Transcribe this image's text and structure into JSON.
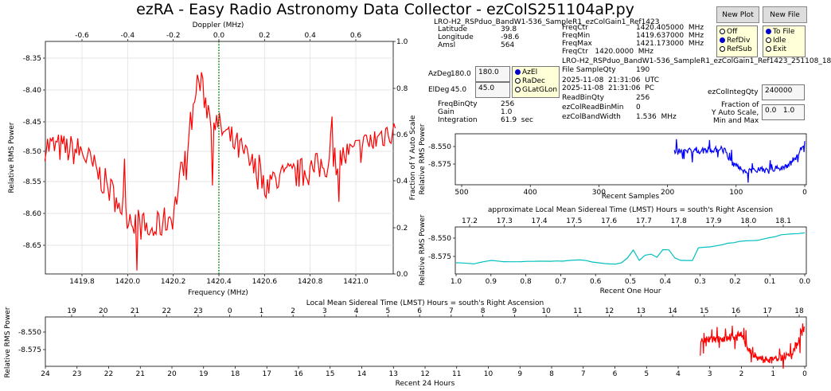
{
  "title": "ezRA - Easy Radio Astronomy Data Collector - ezColS251104aP.py",
  "buttons": {
    "new_plot": "New Plot",
    "new_file": "New File"
  },
  "radio_ref": {
    "options": [
      "Off",
      "RefDiv",
      "RefSub"
    ],
    "selected": 1
  },
  "radio_file": {
    "options": [
      "To File",
      "Idle",
      "Exit"
    ],
    "selected": 0
  },
  "radio_coord": {
    "options": [
      "AzEl",
      "RaDec",
      "GLatGLon"
    ],
    "selected": 0
  },
  "inputs": {
    "az": "180.0",
    "el": "45.0",
    "integ_qty": "240000",
    "fraction": "0.0   1.0"
  },
  "info": {
    "filename_overlap": "LRO-H2_RSPduo_BandW1-536_SampleR1_ezColGain1_Ref1423",
    "freq_ref_overlap": "FreqCtr   1420.0000  MHz",
    "latitude_label": "Latitude",
    "latitude": "39.8",
    "longitude_label": "Longitude",
    "longitude": "-98.6",
    "amsl_label": "Amsl",
    "amsl": "564",
    "freqctr_label": "FreqCtr",
    "freqctr": "1420.405000  MHz",
    "freqmin_label": "FreqMin",
    "freqmin": "1419.637000  MHz",
    "freqmax_label": "FreqMax",
    "freqmax": "1421.173000  MHz",
    "azdeg_label": "AzDeg",
    "azdeg": "180.0",
    "eldeg_label": "ElDeg",
    "eldeg": "45.0",
    "filename": "LRO-H2_RSPduo_BandW1-536_SampleR1_ezColGain1_Ref1423_251108_18",
    "filesample_label": "File SampleQty",
    "filesample": "190",
    "utc": "2025-11-08  21:31:06  UTC",
    "pc": "2025-11-08  21:31:06  PC",
    "freqbin_label": "FreqBinQty",
    "freqbin": "256",
    "gain_label": "Gain",
    "gain": "1.0",
    "integ_label": "Integration",
    "integ": "61.9  sec",
    "readbin_label": "ReadBinQty",
    "readbin": "256",
    "readbinmin_label": "ezColReadBinMin",
    "readbinmin": "0",
    "bandwidth_label": "ezColBandWidth",
    "bandwidth": "1.536  MHz",
    "integqty_label": "ezColIntegQty",
    "fraction_label1": "Fraction of",
    "fraction_label2": "Y Auto Scale,",
    "fraction_label3": "Min and Max"
  },
  "colors": {
    "spectrum": "#ff0000",
    "samples": "#0000ff",
    "hour": "#00c0c0",
    "day": "#ff0000",
    "doppler_line": "#008000"
  },
  "spectrum": {
    "xlabel": "Frequency (MHz)",
    "ylabel": "Relative RMS Power",
    "top_label": "Doppler (MHz)",
    "right_label": "Fraction of Y Auto Scale",
    "xticks": [
      "1419.8",
      "1420.0",
      "1420.2",
      "1420.4",
      "1420.6",
      "1420.8",
      "1421.0"
    ],
    "yticks": [
      "-8.35",
      "-8.40",
      "-8.45",
      "-8.50",
      "-8.55",
      "-8.60",
      "-8.65"
    ],
    "topticks": [
      "-0.6",
      "-0.4",
      "-0.2",
      "0.0",
      "0.2",
      "0.4",
      "0.6"
    ],
    "rightticks": [
      "1.0",
      "0.8",
      "0.6",
      "0.4",
      "0.2",
      "0.0"
    ],
    "trend": [
      [
        1419.637,
        -8.49
      ],
      [
        1419.8,
        -8.5
      ],
      [
        1420.0,
        -8.6
      ],
      [
        1420.1,
        -8.63
      ],
      [
        1420.2,
        -8.6
      ],
      [
        1420.28,
        -8.45
      ],
      [
        1420.31,
        -8.38
      ],
      [
        1420.36,
        -8.44
      ],
      [
        1420.4,
        -8.46
      ],
      [
        1420.5,
        -8.5
      ],
      [
        1420.6,
        -8.55
      ],
      [
        1420.8,
        -8.53
      ],
      [
        1421.0,
        -8.5
      ],
      [
        1421.173,
        -8.46
      ]
    ]
  },
  "samples": {
    "xlabel": "Recent Samples",
    "ylabel": "Relative RMS Power",
    "xticks": [
      "500",
      "400",
      "300",
      "200",
      "100",
      "0"
    ],
    "yticks": [
      "-8.550",
      "-8.575"
    ],
    "trend": [
      [
        190,
        -8.556
      ],
      [
        150,
        -8.556
      ],
      [
        115,
        -8.553
      ],
      [
        110,
        -8.57
      ],
      [
        90,
        -8.585
      ],
      [
        60,
        -8.583
      ],
      [
        30,
        -8.58
      ],
      [
        15,
        -8.57
      ],
      [
        5,
        -8.555
      ],
      [
        0,
        -8.545
      ]
    ]
  },
  "hour": {
    "title": "approximate Local Mean Sidereal Time (LMST) Hours = south's Right Ascension",
    "xlabel": "Recent One Hour",
    "ylabel": "Relative RMS Power",
    "xticks": [
      "1.0",
      "0.9",
      "0.8",
      "0.7",
      "0.6",
      "0.5",
      "0.4",
      "0.3",
      "0.2",
      "0.1",
      "0.0"
    ],
    "topticks": [
      "17.2",
      "17.3",
      "17.4",
      "17.5",
      "17.6",
      "17.7",
      "17.8",
      "17.9",
      "18.0",
      "18.1"
    ],
    "yticks": [
      "-8.550",
      "-8.575"
    ],
    "trend": [
      [
        1.0,
        -8.584
      ],
      [
        0.95,
        -8.585
      ],
      [
        0.9,
        -8.581
      ],
      [
        0.85,
        -8.583
      ],
      [
        0.8,
        -8.581
      ],
      [
        0.75,
        -8.582
      ],
      [
        0.7,
        -8.581
      ],
      [
        0.62,
        -8.58
      ],
      [
        0.6,
        -8.584
      ],
      [
        0.55,
        -8.586
      ],
      [
        0.52,
        -8.583
      ],
      [
        0.49,
        -8.566
      ],
      [
        0.47,
        -8.585
      ],
      [
        0.45,
        -8.565
      ],
      [
        0.43,
        -8.581
      ],
      [
        0.41,
        -8.566
      ],
      [
        0.38,
        -8.567
      ],
      [
        0.37,
        -8.58
      ],
      [
        0.32,
        -8.58
      ],
      [
        0.31,
        -8.563
      ],
      [
        0.28,
        -8.563
      ],
      [
        0.22,
        -8.557
      ],
      [
        0.18,
        -8.554
      ],
      [
        0.12,
        -8.552
      ],
      [
        0.08,
        -8.548
      ],
      [
        0.06,
        -8.545
      ],
      [
        0.03,
        -8.544
      ],
      [
        0,
        -8.543
      ]
    ]
  },
  "day": {
    "title": "Local Mean Sidereal Time (LMST) Hours = south's Right Ascension",
    "xlabel": "Recent 24 Hours",
    "ylabel": "Relative RMS Power",
    "xticks": [
      "24",
      "23",
      "22",
      "21",
      "20",
      "19",
      "18",
      "17",
      "16",
      "15",
      "14",
      "13",
      "12",
      "11",
      "10",
      "9",
      "8",
      "7",
      "6",
      "5",
      "4",
      "3",
      "2",
      "1",
      "0"
    ],
    "topticks": [
      "19",
      "20",
      "21",
      "22",
      "23",
      "0",
      "1",
      "2",
      "3",
      "4",
      "5",
      "6",
      "7",
      "8",
      "9",
      "10",
      "11",
      "12",
      "13",
      "14",
      "15",
      "16",
      "17",
      "18"
    ],
    "yticks": [
      "-8.550",
      "-8.575"
    ],
    "trend": [
      [
        3.3,
        -8.561
      ],
      [
        2.8,
        -8.561
      ],
      [
        2.3,
        -8.557
      ],
      [
        2.0,
        -8.553
      ],
      [
        1.85,
        -8.57
      ],
      [
        1.6,
        -8.585
      ],
      [
        1.3,
        -8.589
      ],
      [
        1.0,
        -8.588
      ],
      [
        0.6,
        -8.585
      ],
      [
        0.4,
        -8.584
      ],
      [
        0.3,
        -8.57
      ],
      [
        0.15,
        -8.56
      ],
      [
        0,
        -8.543
      ]
    ]
  }
}
